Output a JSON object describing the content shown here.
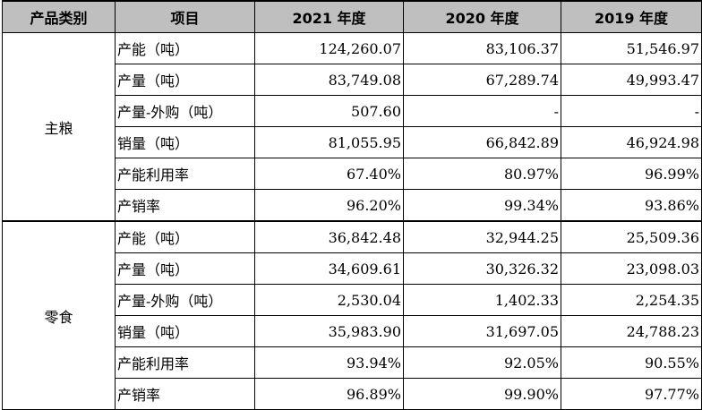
{
  "headers": [
    "产品类别",
    "项目",
    "2021 年度",
    "2020 年度",
    "2019 年度"
  ],
  "groups": [
    {
      "category": "主粮",
      "rows": [
        {
          "item": "产能（吨）",
          "v2021": "124,260.07",
          "v2020": "83,106.37",
          "v2019": "51,546.97"
        },
        {
          "item": "产量（吨）",
          "v2021": "83,749.08",
          "v2020": "67,289.74",
          "v2019": "49,993.47"
        },
        {
          "item": "产量-外购（吨）",
          "v2021": "507.60",
          "v2020": "-",
          "v2019": "-"
        },
        {
          "item": "销量（吨）",
          "v2021": "81,055.95",
          "v2020": "66,842.89",
          "v2019": "46,924.98"
        },
        {
          "item": "产能利用率",
          "v2021": "67.40%",
          "v2020": "80.97%",
          "v2019": "96.99%"
        },
        {
          "item": "产销率",
          "v2021": "96.20%",
          "v2020": "99.34%",
          "v2019": "93.86%"
        }
      ]
    },
    {
      "category": "零食",
      "rows": [
        {
          "item": "产能（吨）",
          "v2021": "36,842.48",
          "v2020": "32,944.25",
          "v2019": "25,509.36"
        },
        {
          "item": "产量（吨）",
          "v2021": "34,609.61",
          "v2020": "30,326.32",
          "v2019": "23,098.03"
        },
        {
          "item": "产量-外购（吨）",
          "v2021": "2,530.04",
          "v2020": "1,402.33",
          "v2019": "2,254.35"
        },
        {
          "item": "销量（吨）",
          "v2021": "35,983.90",
          "v2020": "31,697.05",
          "v2019": "24,788.23"
        },
        {
          "item": "产能利用率",
          "v2021": "93.94%",
          "v2020": "92.05%",
          "v2019": "90.55%"
        },
        {
          "item": "产销率",
          "v2021": "96.89%",
          "v2020": "99.90%",
          "v2019": "97.77%"
        }
      ]
    }
  ]
}
